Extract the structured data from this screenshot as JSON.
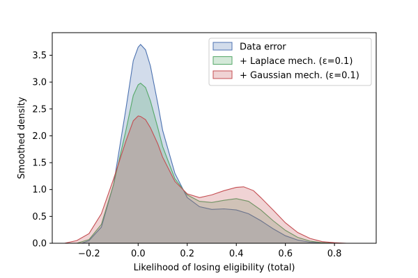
{
  "colors": {
    "blue": "#4c72b0",
    "green": "#55a868",
    "red": "#c44e52"
  },
  "chart_data": {
    "type": "area",
    "title": "",
    "xlabel": "Likelihood of losing eligibility (total)",
    "ylabel": "Smoothed density",
    "xlim": [
      -0.35,
      0.97
    ],
    "ylim": [
      0,
      3.92
    ],
    "xticks": [
      -0.2,
      0.0,
      0.2,
      0.4,
      0.6,
      0.8
    ],
    "xtick_labels": [
      "−0.2",
      "0.0",
      "0.2",
      "0.4",
      "0.6",
      "0.8"
    ],
    "yticks": [
      0.0,
      0.5,
      1.0,
      1.5,
      2.0,
      2.5,
      3.0,
      3.5
    ],
    "ytick_labels": [
      "0.0",
      "0.5",
      "1.0",
      "1.5",
      "2.0",
      "2.5",
      "3.0",
      "3.5"
    ],
    "grid": false,
    "legend_position": "top-right",
    "series": [
      {
        "name": "Data error",
        "color": "#4c72b0",
        "x": [
          -0.23,
          -0.2,
          -0.15,
          -0.1,
          -0.05,
          -0.02,
          0.0,
          0.01,
          0.03,
          0.05,
          0.08,
          0.1,
          0.15,
          0.2,
          0.25,
          0.3,
          0.35,
          0.4,
          0.45,
          0.5,
          0.55,
          0.6,
          0.65,
          0.7,
          0.75,
          0.8,
          0.84
        ],
        "y": [
          0.0,
          0.05,
          0.3,
          1.1,
          2.5,
          3.4,
          3.65,
          3.7,
          3.6,
          3.3,
          2.6,
          2.1,
          1.3,
          0.85,
          0.68,
          0.63,
          0.64,
          0.62,
          0.55,
          0.42,
          0.27,
          0.14,
          0.06,
          0.02,
          0.01,
          0.0,
          0.0
        ]
      },
      {
        "name": "+ Laplace mech. (ε=0.1)",
        "color": "#55a868",
        "x": [
          -0.25,
          -0.2,
          -0.15,
          -0.1,
          -0.05,
          -0.02,
          0.0,
          0.01,
          0.03,
          0.05,
          0.08,
          0.1,
          0.15,
          0.2,
          0.25,
          0.3,
          0.35,
          0.4,
          0.45,
          0.5,
          0.55,
          0.6,
          0.65,
          0.7,
          0.75,
          0.8,
          0.87
        ],
        "y": [
          0.0,
          0.07,
          0.35,
          1.1,
          2.1,
          2.75,
          2.95,
          2.98,
          2.9,
          2.65,
          2.15,
          1.8,
          1.2,
          0.9,
          0.78,
          0.76,
          0.8,
          0.83,
          0.78,
          0.62,
          0.42,
          0.24,
          0.11,
          0.04,
          0.01,
          0.0,
          0.0
        ]
      },
      {
        "name": "+ Gaussian mech. (ε=0.1)",
        "color": "#c44e52",
        "x": [
          -0.3,
          -0.25,
          -0.2,
          -0.15,
          -0.1,
          -0.05,
          -0.02,
          0.0,
          0.01,
          0.03,
          0.05,
          0.08,
          0.1,
          0.15,
          0.2,
          0.25,
          0.3,
          0.35,
          0.4,
          0.43,
          0.47,
          0.5,
          0.55,
          0.6,
          0.65,
          0.7,
          0.75,
          0.8,
          0.85,
          0.93
        ],
        "y": [
          0.0,
          0.05,
          0.18,
          0.55,
          1.2,
          1.9,
          2.28,
          2.37,
          2.36,
          2.3,
          2.15,
          1.85,
          1.6,
          1.15,
          0.92,
          0.85,
          0.9,
          0.98,
          1.04,
          1.05,
          0.98,
          0.85,
          0.62,
          0.38,
          0.2,
          0.09,
          0.03,
          0.01,
          0.0,
          0.0
        ]
      }
    ]
  }
}
